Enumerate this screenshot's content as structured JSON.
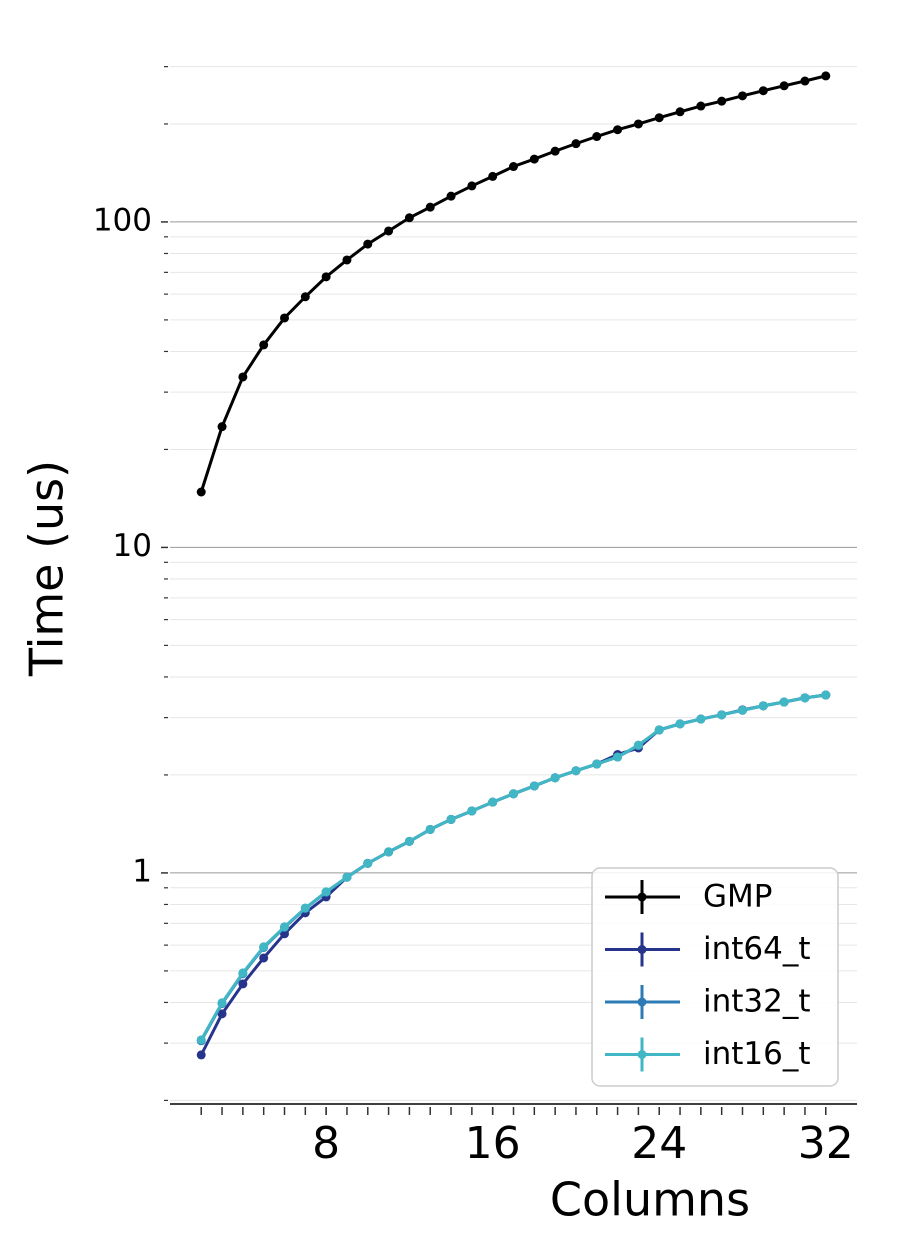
{
  "chart_data": {
    "type": "line",
    "xlabel": "Columns",
    "ylabel": "Time (us)",
    "x": [
      2,
      3,
      4,
      5,
      6,
      7,
      8,
      9,
      10,
      11,
      12,
      13,
      14,
      15,
      16,
      17,
      18,
      19,
      20,
      21,
      22,
      23,
      24,
      25,
      26,
      27,
      28,
      29,
      30,
      31,
      32
    ],
    "series": [
      {
        "name": "GMP",
        "color": "#000000",
        "values": [
          14.8,
          23.5,
          33.4,
          41.9,
          50.7,
          58.9,
          67.8,
          76.4,
          85.5,
          93.8,
          103,
          111,
          120,
          129,
          138,
          148,
          156,
          165,
          174,
          183,
          192,
          200,
          209,
          218,
          227,
          235,
          244,
          253,
          262,
          271,
          281
        ]
      },
      {
        "name": "int64_t",
        "color": "#27348b",
        "values": [
          0.276,
          0.369,
          0.456,
          0.548,
          0.65,
          0.754,
          0.844,
          0.97,
          1.07,
          1.16,
          1.25,
          1.36,
          1.46,
          1.55,
          1.65,
          1.75,
          1.85,
          1.96,
          2.06,
          2.16,
          2.31,
          2.42,
          2.75,
          2.87,
          2.97,
          3.06,
          3.17,
          3.26,
          3.35,
          3.45,
          3.52
        ]
      },
      {
        "name": "int32_t",
        "color": "#2c7bb6",
        "values": [
          0.305,
          0.397,
          0.49,
          0.59,
          0.68,
          0.778,
          0.872,
          0.97,
          1.07,
          1.16,
          1.25,
          1.36,
          1.46,
          1.55,
          1.65,
          1.75,
          1.85,
          1.96,
          2.06,
          2.16,
          2.27,
          2.46,
          2.75,
          2.87,
          2.97,
          3.06,
          3.16,
          3.26,
          3.35,
          3.45,
          3.52
        ]
      },
      {
        "name": "int16_t",
        "color": "#41b6c4",
        "values": [
          0.307,
          0.399,
          0.493,
          0.593,
          0.683,
          0.78,
          0.875,
          0.97,
          1.07,
          1.16,
          1.25,
          1.36,
          1.46,
          1.55,
          1.65,
          1.75,
          1.85,
          1.96,
          2.06,
          2.16,
          2.27,
          2.47,
          2.75,
          2.87,
          2.97,
          3.06,
          3.16,
          3.26,
          3.35,
          3.45,
          3.52
        ]
      }
    ],
    "xlim": [
      0.5,
      33.5
    ],
    "xticks": [
      8,
      16,
      24,
      32
    ],
    "xminor_ticks": [
      2,
      3,
      4,
      5,
      6,
      7,
      8,
      9,
      10,
      11,
      12,
      13,
      14,
      15,
      16,
      17,
      18,
      19,
      20,
      21,
      22,
      23,
      24,
      25,
      26,
      27,
      28,
      29,
      30,
      31,
      32
    ],
    "ylim": [
      0.195,
      310
    ],
    "yscale": "log",
    "yticks": [
      1,
      10,
      100
    ],
    "yminor_ticks": [
      0.2,
      0.3,
      0.4,
      0.5,
      0.6,
      0.7,
      0.8,
      0.9,
      2,
      3,
      4,
      5,
      6,
      7,
      8,
      9,
      20,
      30,
      40,
      50,
      60,
      70,
      80,
      90,
      200,
      300
    ],
    "grid": true,
    "legend": "lower right"
  }
}
